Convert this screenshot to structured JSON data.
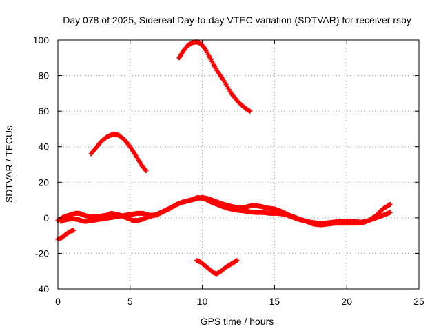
{
  "chart_data": {
    "type": "scatter",
    "title": "Day 078 of 2025, Sidereal Day-to-day VTEC variation (SDTVAR) for receiver rsby",
    "xlabel": "GPS time / hours",
    "ylabel": "SDTVAR / TECUs",
    "xlim": [
      0,
      25
    ],
    "ylim": [
      -40,
      100
    ],
    "x_ticks": [
      0,
      5,
      10,
      15,
      20,
      25
    ],
    "y_ticks": [
      -40,
      -20,
      0,
      20,
      40,
      60,
      80,
      100
    ],
    "grid": true,
    "legend": "none",
    "marker": "plus",
    "series": [
      {
        "name": "arc-low-0",
        "points": [
          [
            0.0,
            -12
          ],
          [
            0.3,
            -11
          ],
          [
            0.6,
            -9
          ],
          [
            0.9,
            -7.5
          ],
          [
            1.1,
            -7
          ]
        ]
      },
      {
        "name": "arc-peak-40",
        "points": [
          [
            2.3,
            36
          ],
          [
            2.6,
            39
          ],
          [
            3.0,
            43
          ],
          [
            3.4,
            45.5
          ],
          [
            3.8,
            47
          ],
          [
            4.2,
            46.5
          ],
          [
            4.6,
            44
          ],
          [
            5.0,
            40
          ],
          [
            5.4,
            35
          ],
          [
            5.8,
            29.5
          ],
          [
            6.1,
            26.5
          ]
        ]
      },
      {
        "name": "arc-peak-100",
        "points": [
          [
            8.4,
            90
          ],
          [
            8.7,
            94
          ],
          [
            9.0,
            97
          ],
          [
            9.3,
            98.5
          ],
          [
            9.6,
            99
          ],
          [
            9.9,
            98
          ],
          [
            10.2,
            95
          ],
          [
            10.6,
            89
          ],
          [
            11.0,
            83
          ],
          [
            11.5,
            77
          ],
          [
            12.0,
            70
          ],
          [
            12.5,
            65
          ],
          [
            13.0,
            61.5
          ],
          [
            13.3,
            60
          ]
        ]
      },
      {
        "name": "arc-trough-30",
        "points": [
          [
            9.6,
            -24
          ],
          [
            9.9,
            -25
          ],
          [
            10.2,
            -27
          ],
          [
            10.5,
            -29
          ],
          [
            10.8,
            -31
          ],
          [
            11.0,
            -31.5
          ],
          [
            11.3,
            -30
          ],
          [
            11.6,
            -28
          ],
          [
            11.9,
            -26.5
          ],
          [
            12.2,
            -25
          ],
          [
            12.4,
            -24
          ]
        ]
      },
      {
        "name": "band-a",
        "points": [
          [
            0.0,
            -1.5
          ],
          [
            0.4,
            0.5
          ],
          [
            0.8,
            1.5
          ],
          [
            1.2,
            2.5
          ],
          [
            1.5,
            2.5
          ],
          [
            1.8,
            1.5
          ],
          [
            2.2,
            0.5
          ],
          [
            2.6,
            0.5
          ],
          [
            3.0,
            1.0
          ],
          [
            3.4,
            1.5
          ],
          [
            3.7,
            2.5
          ],
          [
            4.0,
            2.0
          ],
          [
            4.3,
            1.5
          ],
          [
            4.6,
            0.5
          ],
          [
            4.9,
            -0.5
          ],
          [
            5.2,
            -1.5
          ],
          [
            5.5,
            -1.5
          ],
          [
            5.8,
            -1.0
          ],
          [
            6.1,
            0.0
          ],
          [
            6.5,
            1.0
          ],
          [
            7.0,
            2.5
          ],
          [
            7.5,
            4.5
          ],
          [
            8.0,
            6.5
          ],
          [
            8.5,
            8.5
          ],
          [
            9.0,
            9.5
          ],
          [
            9.5,
            10.5
          ],
          [
            10.0,
            11.5
          ],
          [
            10.5,
            10.5
          ],
          [
            11.0,
            9.0
          ],
          [
            11.5,
            7.5
          ],
          [
            12.0,
            6.5
          ],
          [
            12.5,
            5.5
          ],
          [
            13.0,
            6.0
          ],
          [
            13.5,
            7.0
          ],
          [
            14.0,
            6.5
          ],
          [
            14.5,
            5.5
          ],
          [
            15.0,
            5.0
          ],
          [
            15.5,
            3.5
          ],
          [
            16.0,
            1.5
          ],
          [
            16.5,
            0.0
          ],
          [
            17.0,
            -1.5
          ],
          [
            17.5,
            -2.5
          ],
          [
            18.0,
            -3.0
          ],
          [
            18.5,
            -3.0
          ],
          [
            19.0,
            -2.5
          ],
          [
            19.5,
            -2.0
          ],
          [
            20.0,
            -2.0
          ],
          [
            20.5,
            -2.0
          ],
          [
            21.0,
            -2.5
          ],
          [
            21.5,
            -1.5
          ],
          [
            22.0,
            1.0
          ],
          [
            22.5,
            5.0
          ],
          [
            23.0,
            7.5
          ]
        ]
      },
      {
        "name": "band-b",
        "points": [
          [
            0.2,
            -2.0
          ],
          [
            0.6,
            -1.0
          ],
          [
            1.0,
            -0.5
          ],
          [
            1.4,
            -1.0
          ],
          [
            1.8,
            -2.0
          ],
          [
            2.0,
            -2.0
          ],
          [
            5.5,
            2.5
          ],
          [
            5.9,
            2.5
          ],
          [
            6.3,
            1.5
          ],
          [
            6.8,
            1.5
          ],
          [
            7.2,
            3.0
          ],
          [
            7.7,
            5.0
          ],
          [
            8.2,
            7.5
          ],
          [
            8.7,
            9.0
          ],
          [
            9.2,
            10.0
          ],
          [
            9.7,
            11.5
          ],
          [
            10.2,
            10.5
          ],
          [
            10.7,
            8.5
          ],
          [
            11.2,
            7.0
          ],
          [
            11.7,
            5.5
          ],
          [
            12.2,
            4.5
          ],
          [
            12.7,
            4.0
          ],
          [
            13.2,
            3.5
          ],
          [
            13.7,
            3.0
          ],
          [
            14.2,
            3.0
          ],
          [
            14.7,
            2.5
          ],
          [
            15.2,
            2.5
          ],
          [
            15.7,
            2.0
          ],
          [
            16.2,
            0.5
          ],
          [
            16.7,
            -1.0
          ],
          [
            17.2,
            -2.0
          ],
          [
            17.7,
            -3.5
          ],
          [
            18.2,
            -4.0
          ],
          [
            18.7,
            -3.5
          ],
          [
            19.2,
            -3.0
          ],
          [
            19.7,
            -3.0
          ],
          [
            20.2,
            -3.0
          ],
          [
            20.7,
            -3.0
          ],
          [
            21.2,
            -2.5
          ],
          [
            21.7,
            -1.0
          ],
          [
            22.2,
            0.5
          ],
          [
            22.7,
            2.0
          ],
          [
            23.0,
            3.0
          ]
        ]
      }
    ],
    "colors": {
      "points": "#ff0000",
      "grid": "#a0a0a0",
      "axes": "#000000"
    }
  }
}
